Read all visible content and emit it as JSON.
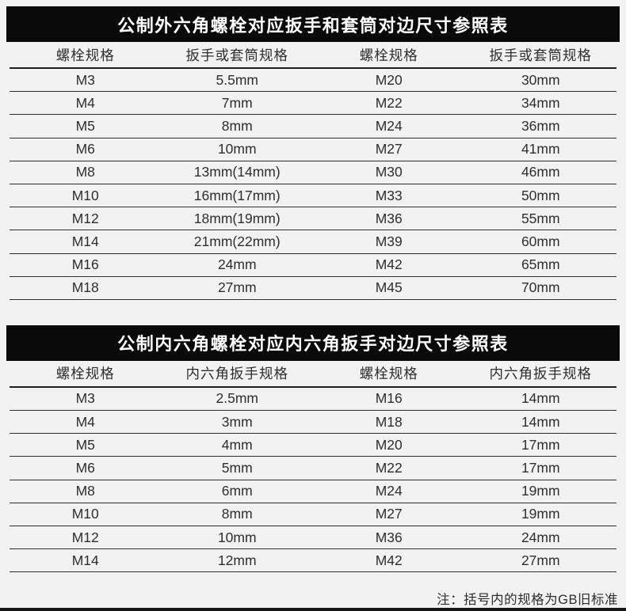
{
  "colors": {
    "page_background": "#f2f2f3",
    "title_bar_background": "#0a0a0a",
    "title_text": "#ffffff",
    "body_text": "#2e2e2e",
    "rule_lines": "#2c2c2c"
  },
  "tables": [
    {
      "title": "公制外六角螺栓对应扳手和套筒对边尺寸参照表",
      "headers": [
        "螺栓规格",
        "扳手或套筒规格",
        "螺栓规格",
        "扳手或套筒规格"
      ],
      "rows": [
        [
          "M3",
          "5.5mm",
          "M20",
          "30mm"
        ],
        [
          "M4",
          "7mm",
          "M22",
          "34mm"
        ],
        [
          "M5",
          "8mm",
          "M24",
          "36mm"
        ],
        [
          "M6",
          "10mm",
          "M27",
          "41mm"
        ],
        [
          "M8",
          "13mm(14mm)",
          "M30",
          "46mm"
        ],
        [
          "M10",
          "16mm(17mm)",
          "M33",
          "50mm"
        ],
        [
          "M12",
          "18mm(19mm)",
          "M36",
          "55mm"
        ],
        [
          "M14",
          "21mm(22mm)",
          "M39",
          "60mm"
        ],
        [
          "M16",
          "24mm",
          "M42",
          "65mm"
        ],
        [
          "M18",
          "27mm",
          "M45",
          "70mm"
        ]
      ]
    },
    {
      "title": "公制内六角螺栓对应内六角扳手对边尺寸参照表",
      "headers": [
        "螺栓规格",
        "内六角扳手规格",
        "螺栓规格",
        "内六角扳手规格"
      ],
      "rows": [
        [
          "M3",
          "2.5mm",
          "M16",
          "14mm"
        ],
        [
          "M4",
          "3mm",
          "M18",
          "14mm"
        ],
        [
          "M5",
          "4mm",
          "M20",
          "17mm"
        ],
        [
          "M6",
          "5mm",
          "M22",
          "17mm"
        ],
        [
          "M8",
          "6mm",
          "M24",
          "19mm"
        ],
        [
          "M10",
          "8mm",
          "M27",
          "19mm"
        ],
        [
          "M12",
          "10mm",
          "M36",
          "24mm"
        ],
        [
          "M14",
          "12mm",
          "M42",
          "27mm"
        ]
      ]
    }
  ],
  "note": "注：括号内的规格为GB旧标准"
}
